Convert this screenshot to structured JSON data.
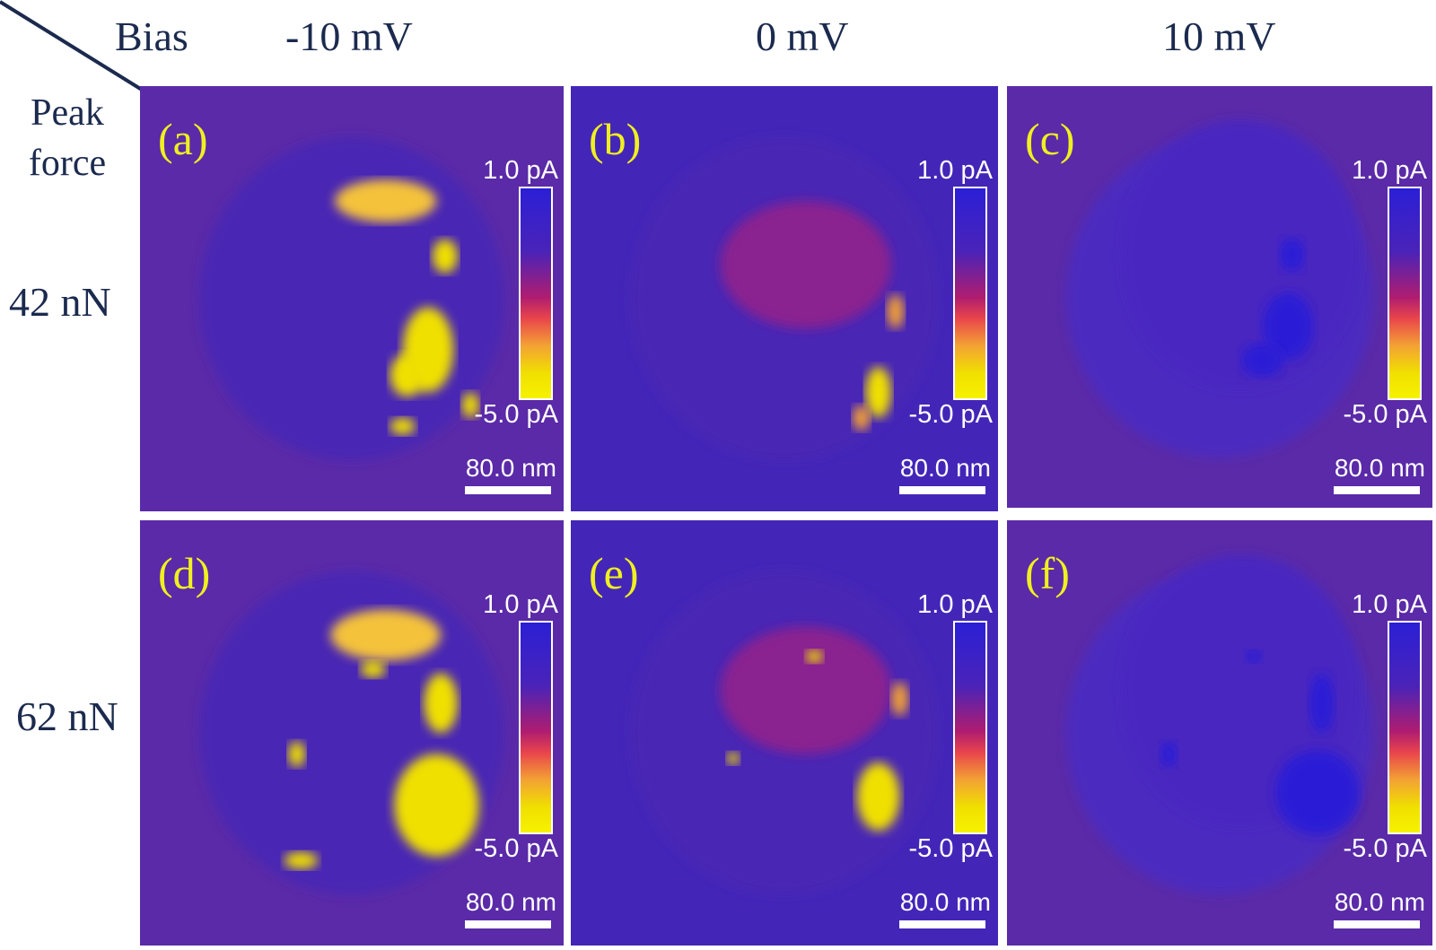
{
  "header": {
    "bias_label": "Bias",
    "peak_force_label": "Peak\nforce",
    "columns": [
      "-10 mV",
      "0 mV",
      "10 mV"
    ],
    "rows": [
      "42 nN",
      "62 nN"
    ]
  },
  "panels": [
    {
      "label": "(a)",
      "cb_max": "1.0 pA",
      "cb_min": "-5.0 pA",
      "scale": "80.0 nm"
    },
    {
      "label": "(b)",
      "cb_max": "1.0 pA",
      "cb_min": "-5.0 pA",
      "scale": "80.0 nm"
    },
    {
      "label": "(c)",
      "cb_max": "1.0 pA",
      "cb_min": "-5.0 pA",
      "scale": "80.0 nm"
    },
    {
      "label": "(d)",
      "cb_max": "1.0 pA",
      "cb_min": "-5.0 pA",
      "scale": "80.0 nm"
    },
    {
      "label": "(e)",
      "cb_max": "1.0 pA",
      "cb_min": "-5.0 pA",
      "scale": "80.0 nm"
    },
    {
      "label": "(f)",
      "cb_max": "1.0 pA",
      "cb_min": "-5.0 pA",
      "scale": "80.0 nm"
    }
  ],
  "colors": {
    "background_purple": "#5a2aa8",
    "low_blue": "#2b1fd6",
    "high_yellow": "#f0e000",
    "label_yellow": "#f0f020",
    "text_navy": "#1b2a4e"
  }
}
